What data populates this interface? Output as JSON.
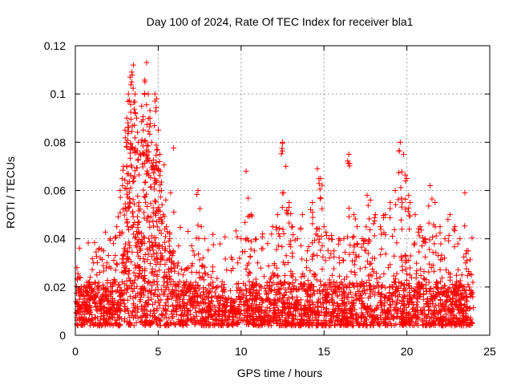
{
  "chart_data": {
    "type": "scatter",
    "title": "Day 100 of 2024, Rate Of TEC Index for receiver bla1",
    "xlabel": "GPS time / hours",
    "ylabel": "ROTI / TECUs",
    "xlim": [
      0,
      25
    ],
    "ylim": [
      0,
      0.12
    ],
    "x_ticks": [
      "0",
      "5",
      "10",
      "15",
      "20",
      "25"
    ],
    "y_ticks": [
      "0",
      "0.02",
      "0.04",
      "0.06",
      "0.08",
      "0.1",
      "0.12"
    ],
    "grid": true,
    "legend": "none",
    "marker": "+",
    "color": "#ff0000",
    "series": [
      {
        "x": [
          0.1,
          0.2,
          0.3,
          0.5,
          0.7,
          0.9,
          1.1,
          1.3,
          1.5,
          1.7,
          1.9,
          2.1,
          2.3,
          2.5,
          2.7,
          2.9,
          3.0,
          3.1,
          3.2,
          3.3,
          3.4,
          3.5,
          3.6,
          3.7,
          3.8,
          3.9,
          4.0,
          4.1,
          4.2,
          4.3,
          4.4,
          4.5,
          4.6,
          4.7,
          4.8,
          4.9,
          5.0,
          5.1,
          5.2,
          5.3,
          5.5,
          5.7,
          5.9,
          6.2,
          6.5,
          6.8,
          7.1,
          7.4,
          7.6,
          7.8,
          8.0,
          8.3,
          8.6,
          9.0,
          9.4,
          9.8,
          10.0,
          10.3,
          10.6,
          10.8,
          11.0,
          11.3,
          11.6,
          11.9,
          12.2,
          12.5,
          12.7,
          12.9,
          13.1,
          13.4,
          13.7,
          14.0,
          14.3,
          14.6,
          14.8,
          15.0,
          15.3,
          15.6,
          15.9,
          16.2,
          16.5,
          16.8,
          17.0,
          17.3,
          17.6,
          17.8,
          18.1,
          18.4,
          18.7,
          19.0,
          19.3,
          19.6,
          19.8,
          20.0,
          20.2,
          20.5,
          20.8,
          21.1,
          21.4,
          21.7,
          22.0,
          22.3,
          22.6,
          22.9,
          23.2,
          23.5,
          23.7,
          23.9
        ],
        "y": [
          0.028,
          0.012,
          0.018,
          0.02,
          0.022,
          0.024,
          0.03,
          0.025,
          0.032,
          0.035,
          0.03,
          0.04,
          0.038,
          0.045,
          0.06,
          0.07,
          0.085,
          0.09,
          0.1,
          0.107,
          0.105,
          0.112,
          0.1,
          0.09,
          0.08,
          0.075,
          0.095,
          0.085,
          0.105,
          0.113,
          0.1,
          0.09,
          0.08,
          0.07,
          0.1,
          0.098,
          0.085,
          0.075,
          0.06,
          0.05,
          0.045,
          0.04,
          0.035,
          0.03,
          0.025,
          0.028,
          0.035,
          0.06,
          0.045,
          0.04,
          0.025,
          0.022,
          0.02,
          0.018,
          0.015,
          0.03,
          0.04,
          0.068,
          0.05,
          0.035,
          0.03,
          0.042,
          0.038,
          0.045,
          0.05,
          0.08,
          0.07,
          0.055,
          0.045,
          0.04,
          0.05,
          0.035,
          0.055,
          0.069,
          0.065,
          0.045,
          0.04,
          0.035,
          0.04,
          0.04,
          0.075,
          0.05,
          0.045,
          0.04,
          0.058,
          0.056,
          0.05,
          0.045,
          0.05,
          0.055,
          0.06,
          0.08,
          0.075,
          0.065,
          0.055,
          0.05,
          0.045,
          0.04,
          0.062,
          0.055,
          0.045,
          0.04,
          0.05,
          0.045,
          0.04,
          0.059,
          0.035,
          0.025
        ]
      }
    ]
  }
}
